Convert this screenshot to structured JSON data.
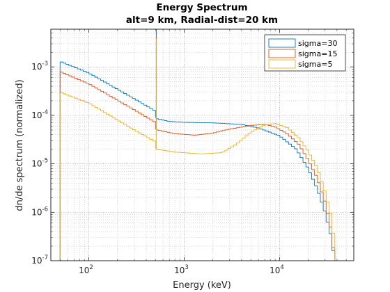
{
  "chart_data": {
    "type": "line",
    "style": "stairs",
    "title": [
      "Energy Spectrum",
      "alt=9 km, Radial-dist=20 km"
    ],
    "xlabel": "Energy (keV)",
    "ylabel": "dn/de spectrum (normalized)",
    "xscale": "log",
    "yscale": "log",
    "xlim": [
      40,
      60000
    ],
    "ylim": [
      1e-07,
      0.006
    ],
    "x_ticks": [
      100,
      1000,
      10000
    ],
    "x_tick_labels": [
      {
        "base": "10",
        "exp": "2"
      },
      {
        "base": "10",
        "exp": "3"
      },
      {
        "base": "10",
        "exp": "4"
      }
    ],
    "y_ticks": [
      1e-07,
      1e-06,
      1e-05,
      0.0001,
      0.001
    ],
    "y_tick_labels": [
      {
        "base": "10",
        "exp": "-7"
      },
      {
        "base": "10",
        "exp": "-6"
      },
      {
        "base": "10",
        "exp": "-5"
      },
      {
        "base": "10",
        "exp": "-4"
      },
      {
        "base": "10",
        "exp": "-3"
      }
    ],
    "grid": true,
    "minor_grid": true,
    "legend_position": "top-right",
    "bin_edges_start": 50,
    "bin_edges_step": 1.0723,
    "series": [
      {
        "name": "sigma=30",
        "color": "#0072BD",
        "anchors": [
          [
            50,
            0.0013
          ],
          [
            100,
            0.00075
          ],
          [
            300,
            0.00022
          ],
          [
            510,
            0.00012
          ],
          [
            520,
            8.5e-05
          ],
          [
            700,
            7.5e-05
          ],
          [
            1000,
            7.2e-05
          ],
          [
            2000,
            7e-05
          ],
          [
            4000,
            6.5e-05
          ],
          [
            6000,
            5.5e-05
          ],
          [
            10000,
            3.8e-05
          ],
          [
            15000,
            2e-05
          ],
          [
            20000,
            8e-06
          ],
          [
            25000,
            3e-06
          ],
          [
            30000,
            1e-06
          ],
          [
            35000,
            3e-07
          ],
          [
            38000,
            1e-07
          ]
        ],
        "spike": {
          "x": 510,
          "y": 0.006
        }
      },
      {
        "name": "sigma=15",
        "color": "#D95319",
        "anchors": [
          [
            50,
            0.0008
          ],
          [
            100,
            0.00045
          ],
          [
            300,
            0.00013
          ],
          [
            510,
            7e-05
          ],
          [
            520,
            5e-05
          ],
          [
            800,
            4.2e-05
          ],
          [
            1300,
            3.9e-05
          ],
          [
            2000,
            4.3e-05
          ],
          [
            3000,
            5.2e-05
          ],
          [
            5000,
            6.2e-05
          ],
          [
            7000,
            6.5e-05
          ],
          [
            9000,
            5.8e-05
          ],
          [
            12000,
            4.2e-05
          ],
          [
            16000,
            2.5e-05
          ],
          [
            20000,
            1.2e-05
          ],
          [
            25000,
            5e-06
          ],
          [
            30000,
            1.6e-06
          ],
          [
            35000,
            4e-07
          ],
          [
            38000,
            1e-07
          ]
        ],
        "spike": {
          "x": 510,
          "y": 0.0043
        }
      },
      {
        "name": "sigma=5",
        "color": "#EDB120",
        "anchors": [
          [
            50,
            0.0003
          ],
          [
            100,
            0.00018
          ],
          [
            300,
            5e-05
          ],
          [
            510,
            2.8e-05
          ],
          [
            520,
            2e-05
          ],
          [
            800,
            1.75e-05
          ],
          [
            1500,
            1.6e-05
          ],
          [
            2500,
            1.7e-05
          ],
          [
            3500,
            2.5e-05
          ],
          [
            5000,
            4.5e-05
          ],
          [
            7000,
            6.3e-05
          ],
          [
            9000,
            6.8e-05
          ],
          [
            12000,
            5.6e-05
          ],
          [
            16000,
            3.4e-05
          ],
          [
            20000,
            1.8e-05
          ],
          [
            25000,
            8e-06
          ],
          [
            30000,
            2.6e-06
          ],
          [
            35000,
            8e-07
          ],
          [
            38000,
            2e-07
          ]
        ],
        "spike": {
          "x": 510,
          "y": 0.0038
        }
      }
    ]
  }
}
